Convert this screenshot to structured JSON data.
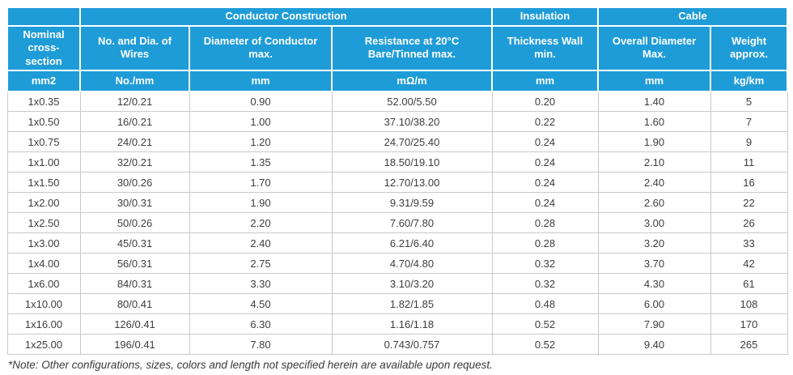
{
  "table": {
    "group_headers": [
      {
        "label": "",
        "colspan": 1
      },
      {
        "label": "Conductor Construction",
        "colspan": 3
      },
      {
        "label": "Insulation",
        "colspan": 1
      },
      {
        "label": "Cable",
        "colspan": 2
      }
    ],
    "columns": [
      {
        "label": "Nominal cross- section",
        "unit": "mm2"
      },
      {
        "label": "No. and Dia. of Wires",
        "unit": "No./mm"
      },
      {
        "label": "Diameter of Conductor max.",
        "unit": "mm"
      },
      {
        "label": "Resistance at 20°C Bare/Tinned max.",
        "unit": "mΩ/m"
      },
      {
        "label": "Thickness Wall min.",
        "unit": "mm"
      },
      {
        "label": "Overall Diameter Max.",
        "unit": "mm"
      },
      {
        "label": "Weight approx.",
        "unit": "kg/km"
      }
    ],
    "rows": [
      [
        "1x0.35",
        "12/0.21",
        "0.90",
        "52.00/5.50",
        "0.20",
        "1.40",
        "5"
      ],
      [
        "1x0.50",
        "16/0.21",
        "1.00",
        "37.10/38.20",
        "0.22",
        "1.60",
        "7"
      ],
      [
        "1x0.75",
        "24/0.21",
        "1.20",
        "24.70/25.40",
        "0.24",
        "1.90",
        "9"
      ],
      [
        "1x1.00",
        "32/0.21",
        "1.35",
        "18.50/19.10",
        "0.24",
        "2.10",
        "11"
      ],
      [
        "1x1.50",
        "30/0.26",
        "1.70",
        "12.70/13.00",
        "0.24",
        "2.40",
        "16"
      ],
      [
        "1x2.00",
        "30/0.31",
        "1.90",
        "9.31/9.59",
        "0.24",
        "2.60",
        "22"
      ],
      [
        "1x2.50",
        "50/0.26",
        "2.20",
        "7.60/7.80",
        "0.28",
        "3.00",
        "26"
      ],
      [
        "1x3.00",
        "45/0.31",
        "2.40",
        "6.21/6.40",
        "0.28",
        "3.20",
        "33"
      ],
      [
        "1x4.00",
        "56/0.31",
        "2.75",
        "4.70/4.80",
        "0.32",
        "3.70",
        "42"
      ],
      [
        "1x6.00",
        "84/0.31",
        "3.30",
        "3.10/3.20",
        "0.32",
        "4.30",
        "61"
      ],
      [
        "1x10.00",
        "80/0.41",
        "4.50",
        "1.82/1.85",
        "0.48",
        "6.00",
        "108"
      ],
      [
        "1x16.00",
        "126/0.41",
        "6.30",
        "1.16/1.18",
        "0.52",
        "7.90",
        "170"
      ],
      [
        "1x25.00",
        "196/0.41",
        "7.80",
        "0.743/0.757",
        "0.52",
        "9.40",
        "265"
      ]
    ],
    "note": "*Note: Other configurations, sizes, colors and length not specified herein are available upon request.",
    "colors": {
      "header_bg": "#1e9cd8",
      "header_text": "#ffffff",
      "body_text": "#3d3d3d",
      "grid": "#c9c9c9",
      "note_text": "#3a3a3a"
    }
  }
}
